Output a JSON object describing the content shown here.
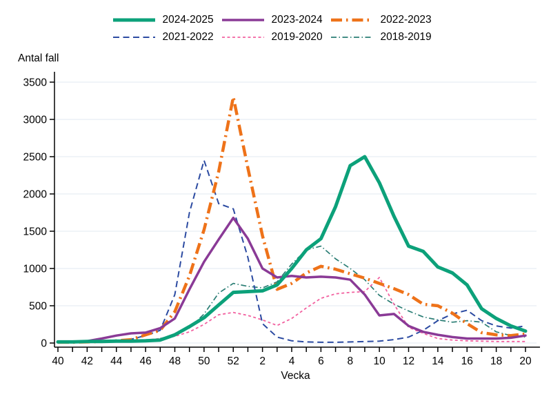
{
  "chart_data": {
    "type": "line",
    "title": "",
    "xlabel": "Vecka",
    "ylabel": "Antal fall",
    "ylim": [
      0,
      3500
    ],
    "yticks": [
      0,
      500,
      1000,
      1500,
      2000,
      2500,
      3000,
      3500
    ],
    "x_categories": [
      "40",
      "41",
      "42",
      "43",
      "44",
      "45",
      "46",
      "47",
      "48",
      "49",
      "50",
      "51",
      "52",
      "1",
      "2",
      "3",
      "4",
      "5",
      "6",
      "7",
      "8",
      "9",
      "10",
      "11",
      "12",
      "13",
      "14",
      "15",
      "16",
      "17",
      "18",
      "19",
      "20"
    ],
    "x_major_tick_labels": [
      "40",
      "42",
      "44",
      "46",
      "48",
      "50",
      "52",
      "2",
      "4",
      "6",
      "8",
      "10",
      "12",
      "14",
      "16",
      "18",
      "20"
    ],
    "grid": "horizontal",
    "legend_position": "top-center",
    "background": "#ffffff",
    "gridline_color": "#e7edf3",
    "axis_color": "#000000",
    "series": [
      {
        "name": "2024-2025",
        "color": "#0ca17a",
        "dash": "solid",
        "width": 5,
        "z": 6,
        "values": [
          15,
          15,
          20,
          20,
          25,
          25,
          30,
          40,
          110,
          220,
          340,
          510,
          680,
          690,
          700,
          780,
          1000,
          1250,
          1400,
          1830,
          2380,
          2500,
          2150,
          1700,
          1300,
          1230,
          1020,
          940,
          780,
          460,
          330,
          230,
          160
        ]
      },
      {
        "name": "2023-2024",
        "color": "#8a3a96",
        "dash": "solid",
        "width": 3.5,
        "z": 5,
        "values": [
          10,
          15,
          25,
          60,
          100,
          130,
          140,
          200,
          330,
          720,
          1090,
          1390,
          1680,
          1400,
          1000,
          880,
          900,
          880,
          890,
          880,
          850,
          650,
          370,
          390,
          230,
          150,
          110,
          80,
          60,
          60,
          60,
          70,
          100
        ]
      },
      {
        "name": "2022-2023",
        "color": "#ee7219",
        "dash": "16 6 2.5 6",
        "width": 4.5,
        "z": 4,
        "values": [
          10,
          10,
          15,
          20,
          30,
          45,
          110,
          170,
          420,
          900,
          1520,
          2300,
          3300,
          2350,
          1440,
          720,
          800,
          940,
          1030,
          990,
          930,
          870,
          800,
          730,
          650,
          520,
          500,
          400,
          260,
          140,
          110,
          100,
          120
        ]
      },
      {
        "name": "2021-2022",
        "color": "#2b4aa1",
        "dash": "9 5.5",
        "width": 2,
        "z": 3,
        "values": [
          5,
          5,
          10,
          10,
          20,
          50,
          100,
          170,
          650,
          1750,
          2450,
          1870,
          1800,
          1150,
          260,
          80,
          30,
          15,
          10,
          10,
          15,
          20,
          25,
          45,
          80,
          170,
          300,
          390,
          440,
          300,
          230,
          200,
          230
        ]
      },
      {
        "name": "2019-2020",
        "color": "#f2609f",
        "dash": "4 3.5",
        "width": 1.8,
        "z": 2,
        "values": [
          5,
          5,
          10,
          10,
          20,
          30,
          40,
          60,
          90,
          150,
          250,
          380,
          410,
          370,
          310,
          235,
          330,
          470,
          600,
          660,
          680,
          690,
          880,
          520,
          210,
          130,
          60,
          40,
          30,
          25,
          20,
          20,
          20
        ]
      },
      {
        "name": "2018-2019",
        "color": "#2a7d74",
        "dash": "8 3.5 1.5 3.5",
        "width": 1.7,
        "z": 1,
        "values": [
          5,
          5,
          10,
          10,
          15,
          20,
          30,
          60,
          110,
          200,
          390,
          670,
          800,
          760,
          740,
          820,
          1060,
          1250,
          1300,
          1130,
          1000,
          850,
          640,
          520,
          430,
          350,
          310,
          280,
          300,
          280,
          150,
          100,
          80
        ]
      }
    ]
  }
}
